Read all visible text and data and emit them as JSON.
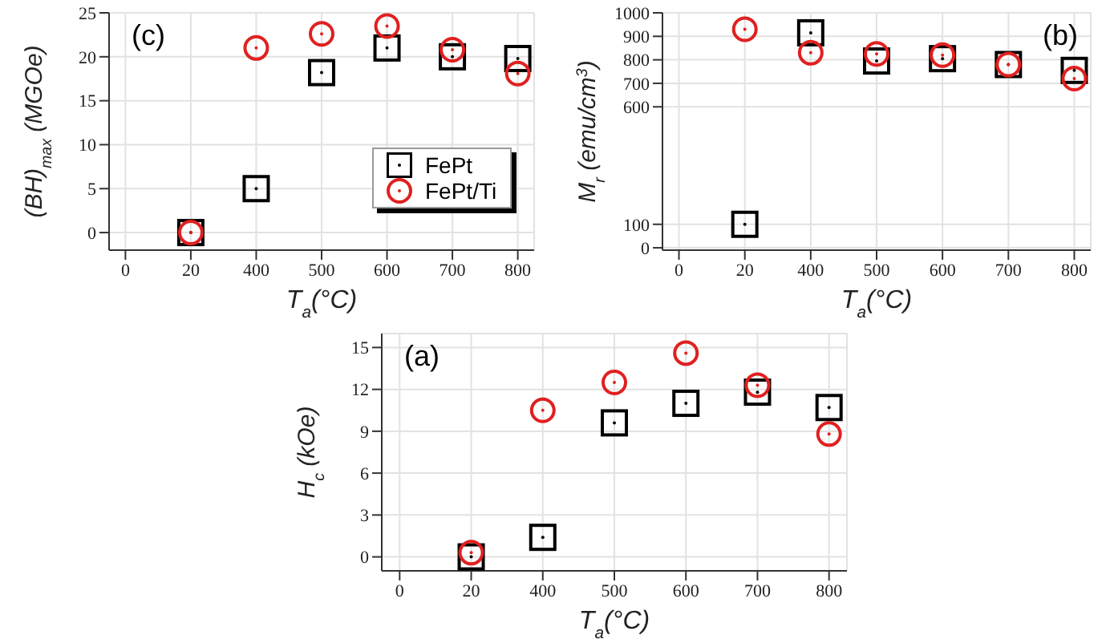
{
  "chart_data": [
    {
      "type": "scatter",
      "xlabel": "T$_{a}$(°C)",
      "ylabel": "(BH)$_{max}$ (MGOe)",
      "annotations": [
        "(c)"
      ],
      "categories": [
        "0",
        "20",
        "400",
        "500",
        "600",
        "700",
        "800"
      ],
      "ylim": [
        -2,
        25
      ],
      "yticks": [
        0,
        5,
        10,
        15,
        20,
        25
      ],
      "grid": true,
      "legend": "bottom right",
      "series": [
        {
          "name": "FePt",
          "color": "#000000",
          "marker": "square",
          "values": [
            null,
            0,
            5,
            18.2,
            21,
            20,
            19.8
          ]
        },
        {
          "name": "FePt/Ti",
          "color": "#e02020",
          "marker": "circle",
          "values": [
            null,
            0,
            21,
            22.6,
            23.5,
            20.8,
            18.1
          ]
        }
      ]
    },
    {
      "type": "scatter",
      "xlabel": "T$_{a}$(°C)",
      "ylabel": "M$_{r}$ (emu/cm$^{3}$)",
      "annotations": [
        "(b)"
      ],
      "categories": [
        "0",
        "20",
        "400",
        "500",
        "600",
        "700",
        "800"
      ],
      "ylim": [
        -10,
        1000
      ],
      "yticks": [
        0,
        100,
        600,
        700,
        800,
        900,
        1000
      ],
      "grid": true,
      "series": [
        {
          "color": "#000000",
          "marker": "square",
          "values": [
            null,
            100,
            915,
            795,
            805,
            780,
            755
          ]
        },
        {
          "color": "#e02020",
          "marker": "circle",
          "values": [
            null,
            930,
            830,
            825,
            820,
            780,
            720
          ]
        }
      ]
    },
    {
      "type": "scatter",
      "xlabel": "T$_{a}$(°C)",
      "ylabel": "H$_{c}$ (kOe)",
      "annotations": [
        "(a)"
      ],
      "categories": [
        "0",
        "20",
        "400",
        "500",
        "600",
        "700",
        "800"
      ],
      "ylim": [
        -1,
        16
      ],
      "yticks": [
        0,
        3,
        6,
        9,
        12,
        15
      ],
      "grid": true,
      "series": [
        {
          "color": "#000000",
          "marker": "square",
          "values": [
            null,
            0,
            1.4,
            9.6,
            11,
            11.8,
            10.7
          ]
        },
        {
          "color": "#e02020",
          "marker": "circle",
          "values": [
            null,
            0.3,
            10.5,
            12.5,
            14.6,
            12.3,
            8.8
          ]
        }
      ]
    }
  ]
}
